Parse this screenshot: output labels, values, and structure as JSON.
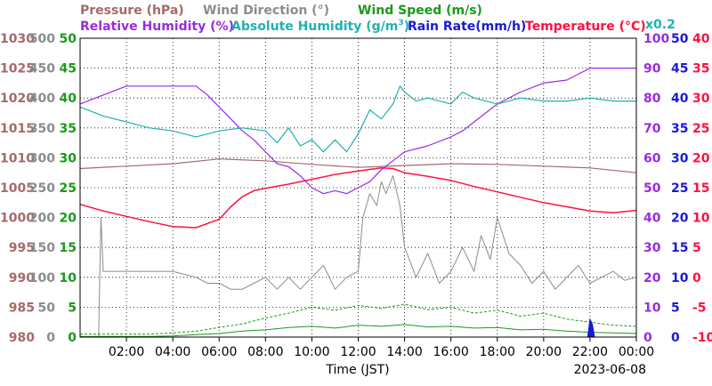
{
  "chart_data": {
    "type": "line",
    "date": "2023-06-08",
    "xlabel": "Time (JST)",
    "ah_scale_note": "x0.2",
    "colors": {
      "pressure": "#a56a6a",
      "wind_dir": "#8c8c8c",
      "wind_speed": "#1a9a1a",
      "rh": "#9a2be0",
      "ah": "#22b0b0",
      "rain": "#1a1ad6",
      "temp": "#ff1040"
    },
    "legend": {
      "pressure": "Pressure (hPa)",
      "wind_dir": "Wind Direction (°)",
      "wind_speed": "Wind Speed (m/s)",
      "rh": "Relative Humidity (%)",
      "ah_prefix": "Absolute Humidity (g/m",
      "ah_sup": "3",
      "ah_suffix": ")",
      "rain": "Rain Rate(mm/h)",
      "temp": "Temperature (°C)"
    },
    "x_ticks": [
      "02:00",
      "04:00",
      "06:00",
      "08:00",
      "10:00",
      "12:00",
      "14:00",
      "16:00",
      "18:00",
      "20:00",
      "22:00",
      "00:00"
    ],
    "x_range_hours": [
      0,
      24
    ],
    "axes": {
      "pressure": {
        "ticks": [
          "980",
          "985",
          "990",
          "995",
          "1000",
          "1005",
          "1010",
          "1015",
          "1020",
          "1025",
          "1030"
        ],
        "range": [
          980,
          1030
        ]
      },
      "wind_dir": {
        "ticks": [
          "0",
          "50",
          "100",
          "150",
          "200",
          "250",
          "300",
          "350",
          "400",
          "450",
          "500"
        ],
        "range": [
          0,
          500
        ]
      },
      "wind_speed": {
        "ticks": [
          "0",
          "5",
          "10",
          "15",
          "20",
          "25",
          "30",
          "35",
          "40",
          "45",
          "50"
        ],
        "range": [
          0,
          50
        ]
      },
      "rh": {
        "ticks": [
          "0",
          "10",
          "20",
          "30",
          "40",
          "50",
          "60",
          "70",
          "80",
          "90",
          "100"
        ],
        "range": [
          0,
          100
        ]
      },
      "rain": {
        "ticks": [
          "0",
          "5",
          "10",
          "15",
          "20",
          "25",
          "30",
          "35",
          "40",
          "45",
          "50"
        ],
        "range": [
          0,
          50
        ]
      },
      "temp": {
        "ticks": [
          "-10",
          "-5",
          "0",
          "5",
          "10",
          "15",
          "20",
          "25",
          "30",
          "35",
          "40"
        ],
        "range": [
          -10,
          40
        ]
      }
    },
    "series": [
      {
        "key": "pressure",
        "axis": "pressure",
        "width": 1.2,
        "x": [
          0,
          2,
          4,
          6,
          8,
          10,
          12,
          14,
          16,
          18,
          20,
          22,
          24
        ],
        "y": [
          1008.2,
          1008.6,
          1009.0,
          1009.8,
          1009.5,
          1008.9,
          1008.4,
          1008.7,
          1009.0,
          1008.9,
          1008.6,
          1008.3,
          1007.5
        ]
      },
      {
        "key": "temp",
        "axis": "temp",
        "width": 1.5,
        "x": [
          0,
          1,
          2,
          3,
          4,
          5,
          6,
          6.5,
          7,
          7.5,
          8,
          9,
          10,
          11,
          12,
          13,
          13.5,
          14,
          15,
          16,
          17,
          18,
          19,
          20,
          21,
          22,
          23,
          24
        ],
        "y": [
          12.2,
          11.1,
          10.2,
          9.3,
          8.5,
          8.3,
          9.7,
          11.8,
          13.5,
          14.5,
          14.9,
          15.6,
          16.4,
          17.2,
          17.8,
          18.3,
          18.2,
          17.5,
          16.9,
          16.2,
          15.2,
          14.3,
          13.4,
          12.5,
          11.8,
          11.1,
          10.8,
          11.2
        ]
      },
      {
        "key": "rh",
        "axis": "rh",
        "width": 1.2,
        "x": [
          0,
          1,
          2,
          3,
          4,
          5,
          5.5,
          6,
          6.5,
          7,
          7.5,
          8,
          8.5,
          9,
          9.5,
          10,
          10.5,
          11,
          11.5,
          12,
          12.5,
          13,
          13.5,
          14,
          15,
          16,
          16.5,
          17,
          18,
          19,
          20,
          21,
          22,
          23,
          24
        ],
        "y": [
          78,
          81,
          84,
          84,
          84,
          84,
          81,
          77,
          73,
          69,
          66,
          62,
          58,
          57,
          54,
          50,
          48,
          49,
          48,
          50,
          52,
          56,
          59,
          62,
          64,
          67,
          69,
          72,
          78,
          82,
          85,
          86,
          90,
          90,
          90
        ]
      },
      {
        "key": "ah",
        "axis": "rh",
        "width": 1.2,
        "x": [
          0,
          1,
          2,
          3,
          4,
          5,
          6,
          7,
          8,
          8.5,
          9,
          9.5,
          10,
          10.5,
          11,
          11.5,
          12,
          12.5,
          13,
          13.5,
          13.8,
          14,
          14.5,
          15,
          16,
          16.5,
          17,
          18,
          19,
          20,
          21,
          22,
          23,
          24
        ],
        "y": [
          77,
          74,
          72,
          70,
          69,
          67,
          69,
          70,
          69,
          65,
          70,
          64,
          66,
          62,
          66,
          62,
          68,
          76,
          73,
          78,
          84,
          82,
          79,
          80,
          78,
          82,
          80,
          78,
          80,
          79,
          79,
          80,
          79,
          79
        ]
      },
      {
        "key": "wind_dir",
        "axis": "wind_dir",
        "width": 1,
        "x": [
          0.8,
          0.9,
          1.0,
          2.0,
          3.0,
          4.0,
          5.0,
          5.5,
          6.0,
          6.5,
          7.0,
          7.5,
          8.0,
          8.5,
          9.0,
          9.5,
          10.0,
          10.5,
          11.0,
          11.5,
          12.0,
          12.2,
          12.5,
          12.8,
          13.0,
          13.2,
          13.5,
          13.8,
          14.0,
          14.5,
          15.0,
          15.5,
          16.0,
          16.5,
          17.0,
          17.3,
          17.7,
          18.0,
          18.5,
          19.0,
          19.5,
          20.0,
          20.5,
          21.0,
          21.5,
          22.0,
          22.5,
          23.0,
          23.5,
          24.0
        ],
        "y": [
          0,
          200,
          110,
          110,
          110,
          110,
          100,
          90,
          90,
          80,
          80,
          90,
          100,
          80,
          100,
          80,
          100,
          120,
          80,
          100,
          110,
          200,
          240,
          220,
          260,
          240,
          270,
          220,
          150,
          100,
          140,
          90,
          110,
          150,
          110,
          170,
          130,
          200,
          140,
          120,
          90,
          110,
          80,
          100,
          120,
          90,
          100,
          110,
          95,
          100
        ]
      },
      {
        "key": "wind_speed",
        "axis": "wind_speed",
        "width": 1,
        "dash": "3,2",
        "x": [
          0,
          1,
          2,
          3,
          4,
          5,
          6,
          7,
          8,
          9,
          10,
          11,
          12,
          13,
          14,
          15,
          16,
          17,
          18,
          19,
          20,
          21,
          22,
          23,
          24
        ],
        "y": [
          0.5,
          0.5,
          0.5,
          0.5,
          0.7,
          1.0,
          1.6,
          2.2,
          3.2,
          4.0,
          5.0,
          4.5,
          5.3,
          4.8,
          5.5,
          4.6,
          5.0,
          4.0,
          4.5,
          3.5,
          4.0,
          3.0,
          2.5,
          2.0,
          1.8
        ]
      },
      {
        "key": "wind_speed",
        "axis": "wind_speed",
        "width": 1,
        "x": [
          0,
          1,
          2,
          3,
          4,
          5,
          6,
          7,
          8,
          9,
          10,
          11,
          12,
          13,
          14,
          15,
          16,
          17,
          18,
          19,
          20,
          21,
          22,
          23,
          24
        ],
        "y": [
          0.1,
          0.1,
          0.1,
          0.1,
          0.2,
          0.4,
          0.6,
          1.0,
          1.2,
          1.6,
          1.8,
          1.5,
          2.0,
          1.8,
          2.1,
          1.7,
          1.8,
          1.5,
          1.6,
          1.2,
          1.3,
          1.0,
          0.8,
          0.7,
          0.6
        ]
      }
    ],
    "rain_bars": [
      {
        "x": [
          21.9,
          22.0,
          22.1,
          22.2
        ],
        "y": [
          0,
          3,
          2.2,
          0
        ]
      }
    ]
  }
}
